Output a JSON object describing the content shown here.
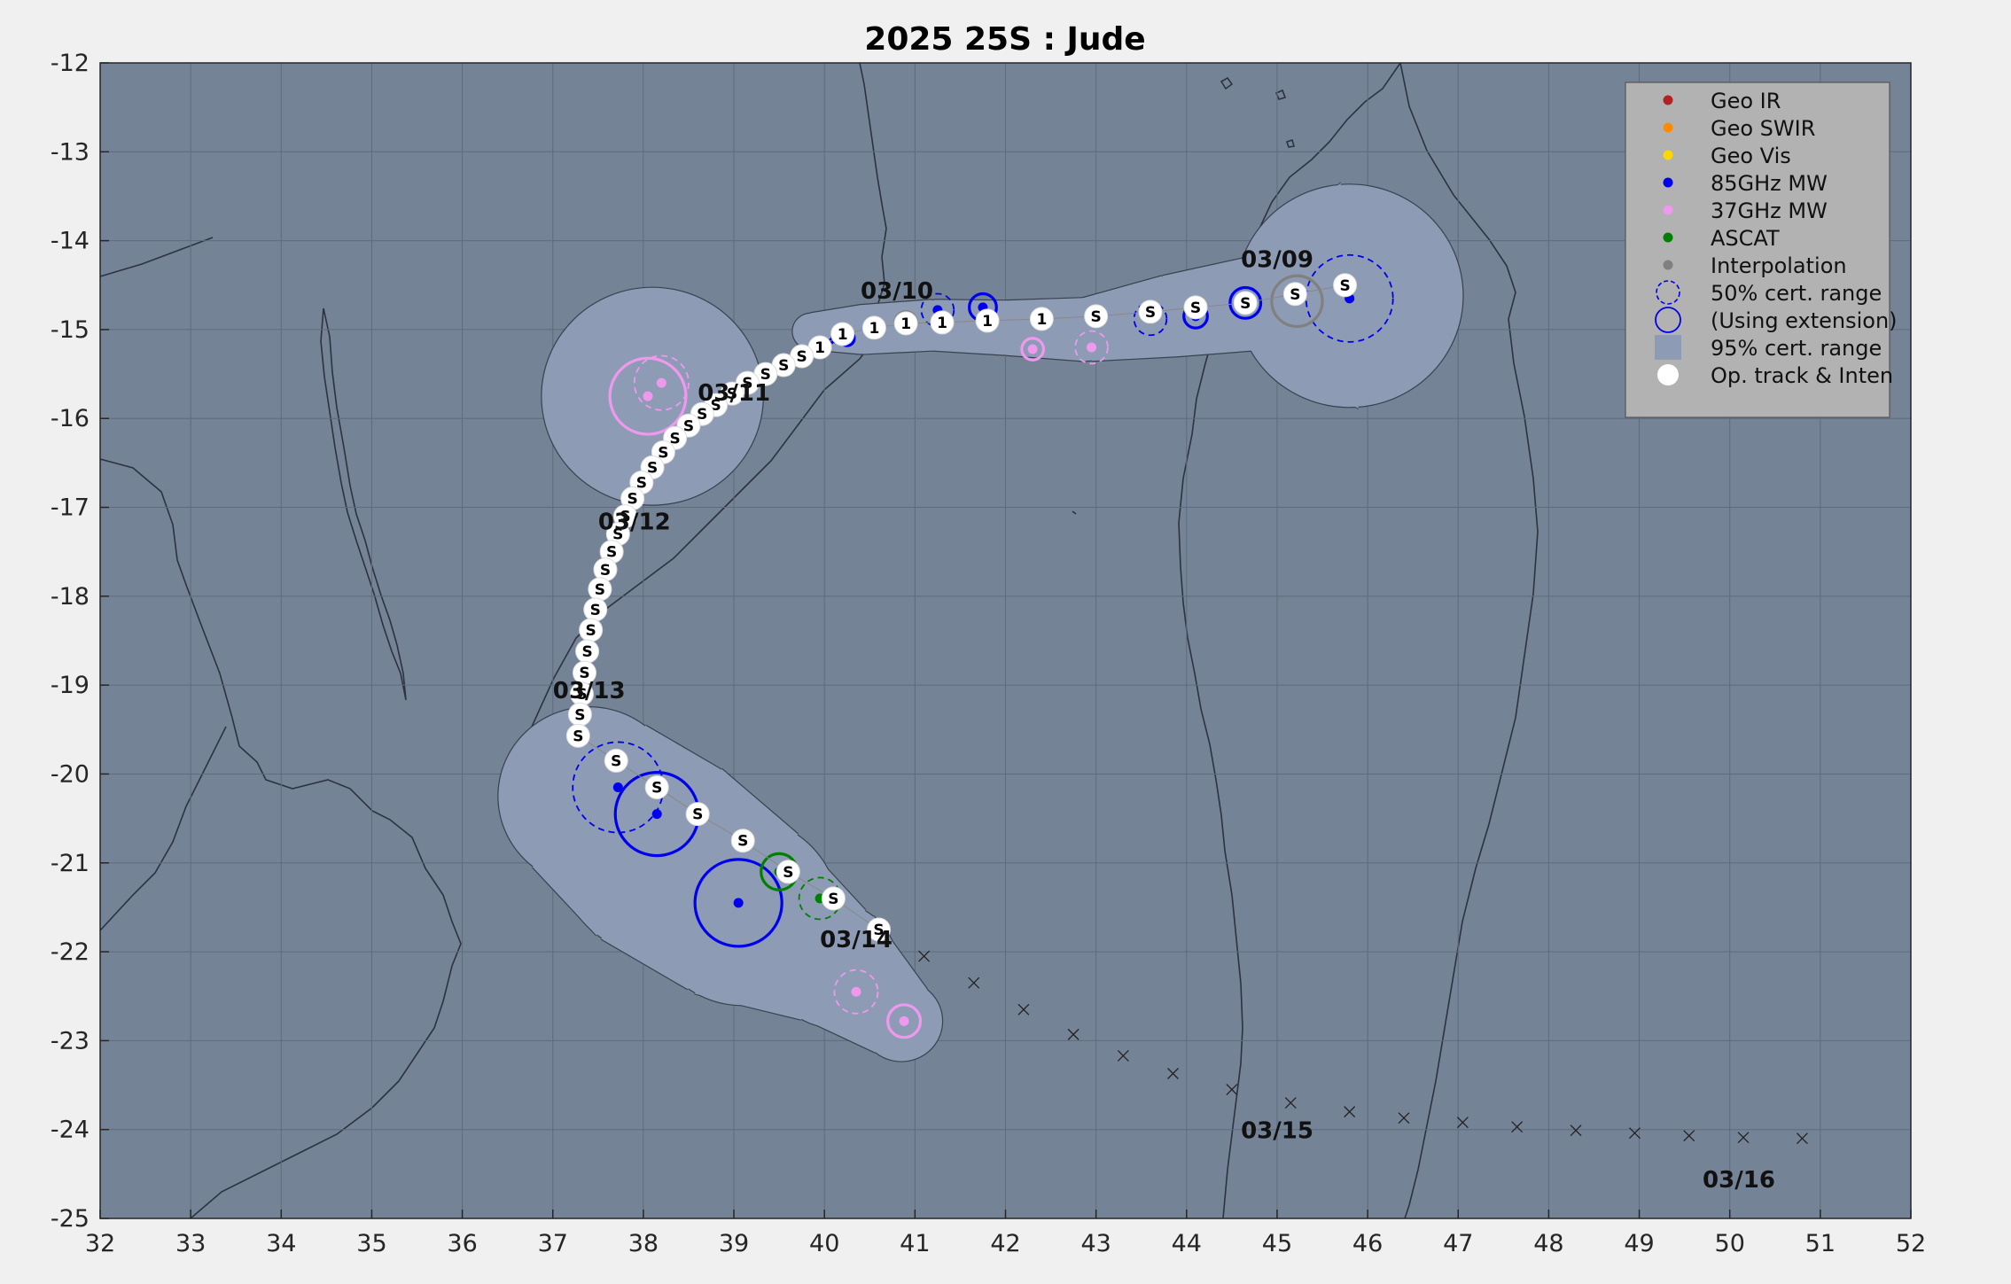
{
  "title": "2025  25S :  Jude",
  "chart_data": {
    "type": "scatter",
    "xlim": [
      32,
      52
    ],
    "ylim": [
      -25,
      -12
    ],
    "x_ticks": [
      "32",
      "33",
      "34",
      "35",
      "36",
      "37",
      "38",
      "39",
      "40",
      "41",
      "42",
      "43",
      "44",
      "45",
      "46",
      "47",
      "48",
      "49",
      "50",
      "51",
      "52"
    ],
    "y_ticks": [
      "-12",
      "-13",
      "-14",
      "-15",
      "-16",
      "-17",
      "-18",
      "-19",
      "-20",
      "-21",
      "-22",
      "-23",
      "-24",
      "-25"
    ],
    "grid": true,
    "colors": {
      "ocean": "#758396",
      "cone": "#8d9cb4",
      "geo_ir": "#b22222",
      "geo_swir": "#ff8c00",
      "geo_vis": "#ffd700",
      "mw85": "#0000ee",
      "mw37": "#ee99ee",
      "ascat": "#008000",
      "interp": "#808080"
    },
    "legend": {
      "placement": "top-right",
      "items": [
        {
          "label": "Geo IR",
          "marker": "dot",
          "color": "#b22222"
        },
        {
          "label": "Geo SWIR",
          "marker": "dot",
          "color": "#ff8c00"
        },
        {
          "label": "Geo Vis",
          "marker": "dot",
          "color": "#ffd700"
        },
        {
          "label": "85GHz MW",
          "marker": "dot",
          "color": "#0000ee"
        },
        {
          "label": "37GHz MW",
          "marker": "dot",
          "color": "#ee99ee"
        },
        {
          "label": "ASCAT",
          "marker": "dot",
          "color": "#008000"
        },
        {
          "label": "Interpolation",
          "marker": "dot",
          "color": "#808080"
        },
        {
          "label": "50% cert. range",
          "marker": "dashed-circle",
          "color": "#0000ee"
        },
        {
          "label": "(Using extension)",
          "marker": "circle",
          "color": "#0000ee"
        },
        {
          "label": "95% cert. range",
          "marker": "square",
          "color": "#8d9cb4"
        },
        {
          "label": "Op. track & Inten",
          "marker": "white-dot",
          "color": "#ffffff"
        }
      ]
    },
    "date_labels": [
      {
        "text": "03/09",
        "x": 44.6,
        "y": -14.3
      },
      {
        "text": "03/10",
        "x": 40.4,
        "y": -14.65
      },
      {
        "text": "03/11",
        "x": 38.6,
        "y": -15.8
      },
      {
        "text": "03/12",
        "x": 37.5,
        "y": -17.25
      },
      {
        "text": "03/13",
        "x": 37.0,
        "y": -19.15
      },
      {
        "text": "03/14",
        "x": 39.95,
        "y": -21.95
      },
      {
        "text": "03/15",
        "x": 44.6,
        "y": -24.1
      },
      {
        "text": "03/16",
        "x": 49.7,
        "y": -24.65
      }
    ],
    "op_track": [
      {
        "x": 45.75,
        "y": -14.5,
        "i": "S"
      },
      {
        "x": 45.2,
        "y": -14.6,
        "i": "S"
      },
      {
        "x": 44.65,
        "y": -14.7,
        "i": "S"
      },
      {
        "x": 44.1,
        "y": -14.75,
        "i": "S"
      },
      {
        "x": 43.6,
        "y": -14.8,
        "i": "S"
      },
      {
        "x": 43.0,
        "y": -14.85,
        "i": "S"
      },
      {
        "x": 42.4,
        "y": -14.88,
        "i": "1"
      },
      {
        "x": 41.8,
        "y": -14.9,
        "i": "1"
      },
      {
        "x": 41.3,
        "y": -14.92,
        "i": "1"
      },
      {
        "x": 40.9,
        "y": -14.93,
        "i": "1"
      },
      {
        "x": 40.55,
        "y": -14.98,
        "i": "1"
      },
      {
        "x": 40.2,
        "y": -15.05,
        "i": "1"
      },
      {
        "x": 39.95,
        "y": -15.2,
        "i": "1"
      },
      {
        "x": 39.75,
        "y": -15.3,
        "i": "S"
      },
      {
        "x": 39.55,
        "y": -15.4,
        "i": "S"
      },
      {
        "x": 39.35,
        "y": -15.5,
        "i": "S"
      },
      {
        "x": 39.15,
        "y": -15.6,
        "i": "S"
      },
      {
        "x": 38.98,
        "y": -15.72,
        "i": "S"
      },
      {
        "x": 38.8,
        "y": -15.85,
        "i": "S"
      },
      {
        "x": 38.65,
        "y": -15.95,
        "i": "S"
      },
      {
        "x": 38.5,
        "y": -16.08,
        "i": "S"
      },
      {
        "x": 38.35,
        "y": -16.22,
        "i": "S"
      },
      {
        "x": 38.22,
        "y": -16.38,
        "i": "S"
      },
      {
        "x": 38.1,
        "y": -16.55,
        "i": "S"
      },
      {
        "x": 37.98,
        "y": -16.72,
        "i": "S"
      },
      {
        "x": 37.88,
        "y": -16.9,
        "i": "S"
      },
      {
        "x": 37.8,
        "y": -17.1,
        "i": "S"
      },
      {
        "x": 37.72,
        "y": -17.3,
        "i": "S"
      },
      {
        "x": 37.65,
        "y": -17.5,
        "i": "S"
      },
      {
        "x": 37.58,
        "y": -17.7,
        "i": "S"
      },
      {
        "x": 37.52,
        "y": -17.92,
        "i": "S"
      },
      {
        "x": 37.47,
        "y": -18.15,
        "i": "S"
      },
      {
        "x": 37.42,
        "y": -18.38,
        "i": "S"
      },
      {
        "x": 37.38,
        "y": -18.62,
        "i": "S"
      },
      {
        "x": 37.35,
        "y": -18.86,
        "i": "S"
      },
      {
        "x": 37.32,
        "y": -19.1,
        "i": "S"
      },
      {
        "x": 37.3,
        "y": -19.33,
        "i": "S"
      },
      {
        "x": 37.28,
        "y": -19.57,
        "i": "S"
      },
      {
        "x": 37.7,
        "y": -19.85,
        "i": "S"
      },
      {
        "x": 38.15,
        "y": -20.15,
        "i": "S"
      },
      {
        "x": 38.6,
        "y": -20.45,
        "i": "S"
      },
      {
        "x": 39.1,
        "y": -20.75,
        "i": "S"
      },
      {
        "x": 39.6,
        "y": -21.1,
        "i": "S"
      },
      {
        "x": 40.1,
        "y": -21.4,
        "i": "S"
      },
      {
        "x": 40.6,
        "y": -21.75,
        "i": "S"
      }
    ],
    "fixes": [
      {
        "type": "85GHz MW",
        "x": 45.8,
        "y": -14.65,
        "r50": 0.48,
        "ext": false
      },
      {
        "type": "85GHz MW",
        "x": 44.65,
        "y": -14.7,
        "r50": 0.17,
        "ext": true
      },
      {
        "type": "85GHz MW",
        "x": 44.1,
        "y": -14.85,
        "r50": 0.13,
        "ext": true
      },
      {
        "type": "85GHz MW",
        "x": 43.6,
        "y": -14.88,
        "r50": 0.18,
        "ext": false
      },
      {
        "type": "85GHz MW",
        "x": 41.75,
        "y": -14.75,
        "r50": 0.15,
        "ext": true
      },
      {
        "type": "85GHz MW",
        "x": 41.25,
        "y": -14.78,
        "r50": 0.18,
        "ext": false
      },
      {
        "type": "85GHz MW",
        "x": 40.25,
        "y": -15.1,
        "r50": 0.08,
        "ext": true
      },
      {
        "type": "85GHz MW",
        "x": 40.12,
        "y": -15.1,
        "r50": 0.06,
        "ext": false
      },
      {
        "type": "85GHz MW",
        "x": 37.72,
        "y": -20.15,
        "r50": 0.5,
        "ext": false
      },
      {
        "type": "85GHz MW",
        "x": 38.15,
        "y": -20.45,
        "r50": 0.46,
        "ext": true
      },
      {
        "type": "85GHz MW",
        "x": 39.05,
        "y": -21.45,
        "r50": 0.48,
        "ext": true
      },
      {
        "type": "37GHz MW",
        "x": 38.2,
        "y": -15.6,
        "r50": 0.3,
        "ext": false
      },
      {
        "type": "37GHz MW",
        "x": 38.05,
        "y": -15.75,
        "r50": 0.42,
        "ext": true
      },
      {
        "type": "37GHz MW",
        "x": 42.3,
        "y": -15.22,
        "r50": 0.12,
        "ext": true
      },
      {
        "type": "37GHz MW",
        "x": 42.95,
        "y": -15.2,
        "r50": 0.18,
        "ext": false
      },
      {
        "type": "37GHz MW",
        "x": 40.35,
        "y": -22.45,
        "r50": 0.24,
        "ext": false
      },
      {
        "type": "37GHz MW",
        "x": 40.88,
        "y": -22.78,
        "r50": 0.18,
        "ext": true
      },
      {
        "type": "ASCAT",
        "x": 39.5,
        "y": -21.1,
        "r50": 0.2,
        "ext": true
      },
      {
        "type": "ASCAT",
        "x": 39.95,
        "y": -21.4,
        "r50": 0.23,
        "ext": false
      },
      {
        "type": "Interpolation",
        "x": 45.22,
        "y": -14.68,
        "r50": 0.28,
        "ext": true
      },
      {
        "type": "Interpolation",
        "x": 40.9,
        "y": -14.92,
        "r50": 0.12,
        "ext": true
      },
      {
        "type": "Interpolation",
        "x": 40.55,
        "y": -15.0,
        "r50": 0.1,
        "ext": true
      }
    ],
    "forecast_track": [
      {
        "x": 41.1,
        "y": -22.05
      },
      {
        "x": 41.65,
        "y": -22.35
      },
      {
        "x": 42.2,
        "y": -22.65
      },
      {
        "x": 42.75,
        "y": -22.93
      },
      {
        "x": 43.3,
        "y": -23.17
      },
      {
        "x": 43.85,
        "y": -23.37
      },
      {
        "x": 44.5,
        "y": -23.55
      },
      {
        "x": 45.15,
        "y": -23.7
      },
      {
        "x": 45.8,
        "y": -23.8
      },
      {
        "x": 46.4,
        "y": -23.87
      },
      {
        "x": 47.05,
        "y": -23.92
      },
      {
        "x": 47.65,
        "y": -23.97
      },
      {
        "x": 48.3,
        "y": -24.01
      },
      {
        "x": 48.95,
        "y": -24.04
      },
      {
        "x": 49.55,
        "y": -24.07
      },
      {
        "x": 50.15,
        "y": -24.09
      },
      {
        "x": 50.8,
        "y": -24.1
      }
    ],
    "cone_95": [
      {
        "x": 45.8,
        "y": -14.62,
        "r": 1.25
      },
      {
        "x": 44.8,
        "y": -14.7,
        "r": 0.52
      },
      {
        "x": 43.8,
        "y": -14.85,
        "r": 0.45
      },
      {
        "x": 42.9,
        "y": -15.0,
        "r": 0.35
      },
      {
        "x": 42.0,
        "y": -14.98,
        "r": 0.3
      },
      {
        "x": 41.2,
        "y": -14.95,
        "r": 0.28
      },
      {
        "x": 40.4,
        "y": -15.0,
        "r": 0.27
      },
      {
        "x": 39.85,
        "y": -15.02,
        "r": 0.2
      },
      {
        "x": 38.1,
        "y": -15.75,
        "r": 1.22
      },
      {
        "x": 37.4,
        "y": -20.25,
        "r": 1.0
      },
      {
        "x": 38.2,
        "y": -20.9,
        "r": 1.15
      },
      {
        "x": 39.1,
        "y": -21.55,
        "r": 1.05
      },
      {
        "x": 40.1,
        "y": -22.15,
        "r": 0.7
      },
      {
        "x": 40.85,
        "y": -22.78,
        "r": 0.45
      }
    ]
  }
}
